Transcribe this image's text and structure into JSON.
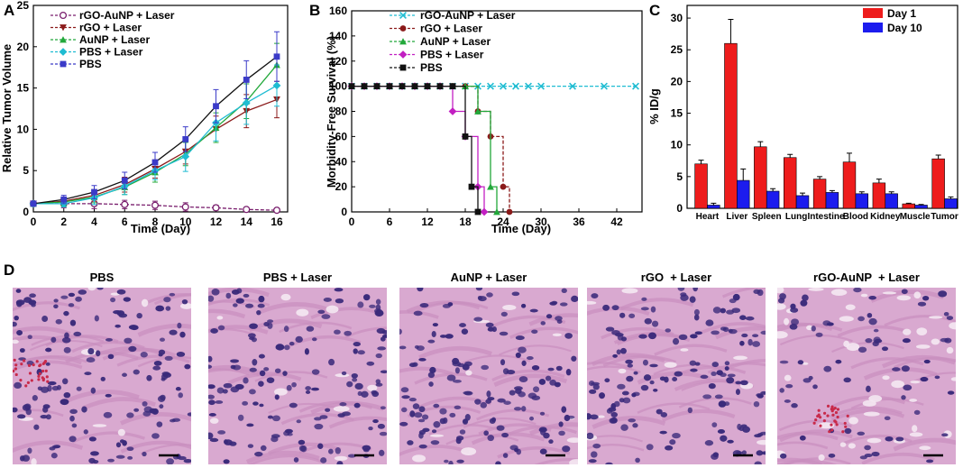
{
  "colors": {
    "rgo_aunp": "#7a1f6e",
    "rgo": "#8b1a1a",
    "aunp": "#22a83a",
    "pbs_laser": "#1fbcd2",
    "pbs": "#111111",
    "pbs_b": "#c21fc2",
    "pbs_a": "#3b3bc8",
    "day1": "#ee1c1c",
    "day10": "#1c1cee",
    "tissue_bg": "#d9a9d0",
    "nucleus": "#3a2a7a",
    "rbc": "#c82a4a"
  },
  "panels": {
    "a": {
      "letter": "A"
    },
    "b": {
      "letter": "B"
    },
    "c": {
      "letter": "C"
    },
    "d": {
      "letter": "D"
    }
  },
  "chart_data": [
    {
      "id": "A",
      "type": "line",
      "title": "",
      "xlabel": "Time (Day)",
      "ylabel": "Relative Tumor Volume",
      "xlim": [
        0,
        16
      ],
      "ylim": [
        0,
        25
      ],
      "xticks": [
        0,
        2,
        4,
        6,
        8,
        10,
        12,
        14,
        16
      ],
      "yticks": [
        0,
        5,
        10,
        15,
        20,
        25
      ],
      "x": [
        0,
        2,
        4,
        6,
        8,
        10,
        12,
        14,
        16
      ],
      "legend_position": "top-left",
      "series": [
        {
          "name": "rGO-AuNP + Laser",
          "color_key": "rgo_aunp",
          "marker": "circle-open",
          "dashed": true,
          "values": [
            1.0,
            1.0,
            1.0,
            0.9,
            0.8,
            0.6,
            0.5,
            0.3,
            0.2
          ],
          "errors": [
            0.2,
            0.5,
            0.6,
            0.5,
            0.5,
            0.5,
            0.3,
            0.2,
            0.2
          ]
        },
        {
          "name": "rGO + Laser",
          "color_key": "rgo",
          "marker": "triangle-down",
          "values": [
            1.0,
            1.3,
            2.0,
            3.3,
            5.2,
            7.3,
            10.0,
            12.2,
            13.6
          ],
          "errors": [
            0.2,
            0.5,
            0.7,
            0.9,
            1.1,
            1.5,
            1.6,
            2.0,
            2.2
          ]
        },
        {
          "name": "AuNP + Laser",
          "color_key": "aunp",
          "marker": "triangle-up",
          "values": [
            1.0,
            1.2,
            1.8,
            3.0,
            4.8,
            7.0,
            10.2,
            13.4,
            17.8
          ],
          "errors": [
            0.2,
            0.5,
            0.7,
            0.9,
            1.2,
            1.4,
            1.8,
            2.1,
            2.6
          ]
        },
        {
          "name": "PBS + Laser",
          "color_key": "pbs_laser",
          "marker": "diamond",
          "values": [
            1.0,
            1.0,
            1.7,
            3.1,
            5.0,
            6.7,
            10.8,
            13.2,
            15.3
          ],
          "errors": [
            0.3,
            0.4,
            0.8,
            1.0,
            1.1,
            1.8,
            2.2,
            2.6,
            2.5
          ]
        },
        {
          "name": "PBS",
          "color_key": "pbs_a",
          "marker": "square",
          "solid_color_key": "pbs",
          "values": [
            1.0,
            1.5,
            2.4,
            3.8,
            6.0,
            8.8,
            12.8,
            16.0,
            18.8
          ],
          "errors": [
            0.2,
            0.5,
            0.8,
            1.0,
            1.2,
            1.5,
            2.0,
            2.3,
            3.0
          ]
        }
      ]
    },
    {
      "id": "B",
      "type": "line",
      "title": "",
      "xlabel": "Time (Day)",
      "ylabel": "Morbidity-Free Survival (%)",
      "xlim": [
        0,
        46
      ],
      "ylim": [
        0,
        160
      ],
      "xticks": [
        0,
        6,
        12,
        18,
        24,
        30,
        36,
        42
      ],
      "yticks": [
        0,
        20,
        40,
        60,
        80,
        100,
        120,
        140,
        160
      ],
      "legend_position": "top-left",
      "series": [
        {
          "name": "rGO-AuNP + Laser",
          "color_key": "pbs_laser",
          "marker": "x",
          "dashed": true,
          "points": [
            [
              0,
              100
            ],
            [
              2,
              100
            ],
            [
              4,
              100
            ],
            [
              6,
              100
            ],
            [
              8,
              100
            ],
            [
              10,
              100
            ],
            [
              12,
              100
            ],
            [
              14,
              100
            ],
            [
              16,
              100
            ],
            [
              18,
              100
            ],
            [
              20,
              100
            ],
            [
              22,
              100
            ],
            [
              24,
              100
            ],
            [
              26,
              100
            ],
            [
              28,
              100
            ],
            [
              30,
              100
            ],
            [
              35,
              100
            ],
            [
              40,
              100
            ],
            [
              45,
              100
            ]
          ],
          "step": false
        },
        {
          "name": "rGO + Laser",
          "color_key": "rgo",
          "marker": "circle",
          "dashed": true,
          "points": [
            [
              0,
              100
            ],
            [
              2,
              100
            ],
            [
              4,
              100
            ],
            [
              6,
              100
            ],
            [
              8,
              100
            ],
            [
              10,
              100
            ],
            [
              12,
              100
            ],
            [
              14,
              100
            ],
            [
              16,
              100
            ],
            [
              18,
              100
            ],
            [
              20,
              80
            ],
            [
              22,
              60
            ],
            [
              24,
              20
            ],
            [
              25,
              0
            ]
          ],
          "step": true
        },
        {
          "name": "AuNP + Laser",
          "color_key": "aunp",
          "marker": "triangle-up",
          "points": [
            [
              0,
              100
            ],
            [
              2,
              100
            ],
            [
              4,
              100
            ],
            [
              6,
              100
            ],
            [
              8,
              100
            ],
            [
              10,
              100
            ],
            [
              12,
              100
            ],
            [
              14,
              100
            ],
            [
              16,
              100
            ],
            [
              18,
              100
            ],
            [
              20,
              80
            ],
            [
              22,
              20
            ],
            [
              23,
              0
            ]
          ],
          "step": true
        },
        {
          "name": "PBS + Laser",
          "color_key": "pbs_b",
          "marker": "diamond",
          "points": [
            [
              0,
              100
            ],
            [
              2,
              100
            ],
            [
              4,
              100
            ],
            [
              6,
              100
            ],
            [
              8,
              100
            ],
            [
              10,
              100
            ],
            [
              12,
              100
            ],
            [
              14,
              100
            ],
            [
              16,
              80
            ],
            [
              18,
              60
            ],
            [
              20,
              20
            ],
            [
              21,
              0
            ]
          ],
          "step": true
        },
        {
          "name": "PBS",
          "color_key": "pbs",
          "marker": "square",
          "points": [
            [
              0,
              100
            ],
            [
              2,
              100
            ],
            [
              4,
              100
            ],
            [
              6,
              100
            ],
            [
              8,
              100
            ],
            [
              10,
              100
            ],
            [
              12,
              100
            ],
            [
              14,
              100
            ],
            [
              16,
              100
            ],
            [
              18,
              60
            ],
            [
              19,
              20
            ],
            [
              20,
              0
            ]
          ],
          "step": true
        }
      ]
    },
    {
      "id": "C",
      "type": "bar",
      "title": "",
      "xlabel": "",
      "ylabel": "% ID/g",
      "ylim": [
        0,
        32
      ],
      "yticks": [
        0,
        5,
        10,
        15,
        20,
        25,
        30
      ],
      "categories": [
        "Heart",
        "Liver",
        "Spleen",
        "Lung",
        "Intestine",
        "Blood",
        "Kidney",
        "Muscle",
        "Tumor"
      ],
      "legend_position": "top-right",
      "series": [
        {
          "name": "Day 1",
          "color_key": "day1",
          "values": [
            7.0,
            26.0,
            9.7,
            8.0,
            4.6,
            7.3,
            4.0,
            0.7,
            7.8
          ],
          "errors": [
            0.6,
            3.8,
            0.8,
            0.5,
            0.4,
            1.4,
            0.6,
            0.1,
            0.6
          ]
        },
        {
          "name": "Day 10",
          "color_key": "day10",
          "values": [
            0.5,
            4.4,
            2.7,
            2.0,
            2.5,
            2.3,
            2.3,
            0.5,
            1.5
          ],
          "errors": [
            0.3,
            1.8,
            0.4,
            0.4,
            0.3,
            0.3,
            0.3,
            0.1,
            0.3
          ]
        }
      ]
    }
  ],
  "histology": {
    "titles": [
      "PBS",
      "PBS + Laser",
      "AuNP + Laser",
      "rGO  + Laser",
      "rGO-AuNP  + Laser"
    ]
  }
}
